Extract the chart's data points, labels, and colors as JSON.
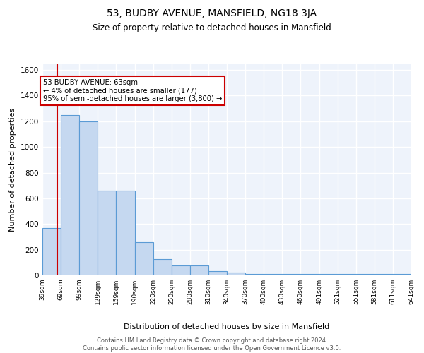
{
  "title1": "53, BUDBY AVENUE, MANSFIELD, NG18 3JA",
  "title2": "Size of property relative to detached houses in Mansfield",
  "xlabel": "Distribution of detached houses by size in Mansfield",
  "ylabel": "Number of detached properties",
  "bin_edges": [
    39,
    69,
    99,
    129,
    159,
    190,
    220,
    250,
    280,
    310,
    340,
    370,
    400,
    430,
    460,
    491,
    521,
    551,
    581,
    611,
    641
  ],
  "bar_heights": [
    370,
    1250,
    1200,
    660,
    660,
    260,
    125,
    75,
    75,
    35,
    20,
    10,
    10,
    10,
    10,
    10,
    10,
    10,
    10,
    10
  ],
  "bar_color": "#c5d8f0",
  "bar_edge_color": "#5b9bd5",
  "property_size": 63,
  "property_line_color": "#cc0000",
  "annotation_text": "53 BUDBY AVENUE: 63sqm\n← 4% of detached houses are smaller (177)\n95% of semi-detached houses are larger (3,800) →",
  "annotation_box_color": "#ffffff",
  "annotation_box_edge_color": "#cc0000",
  "ylim": [
    0,
    1650
  ],
  "yticks": [
    0,
    200,
    400,
    600,
    800,
    1000,
    1200,
    1400,
    1600
  ],
  "background_color": "#eef3fb",
  "grid_color": "#ffffff",
  "footer_text": "Contains HM Land Registry data © Crown copyright and database right 2024.\nContains public sector information licensed under the Open Government Licence v3.0.",
  "tick_labels": [
    "39sqm",
    "69sqm",
    "99sqm",
    "129sqm",
    "159sqm",
    "190sqm",
    "220sqm",
    "250sqm",
    "280sqm",
    "310sqm",
    "340sqm",
    "370sqm",
    "400sqm",
    "430sqm",
    "460sqm",
    "491sqm",
    "521sqm",
    "551sqm",
    "581sqm",
    "611sqm",
    "641sqm"
  ]
}
